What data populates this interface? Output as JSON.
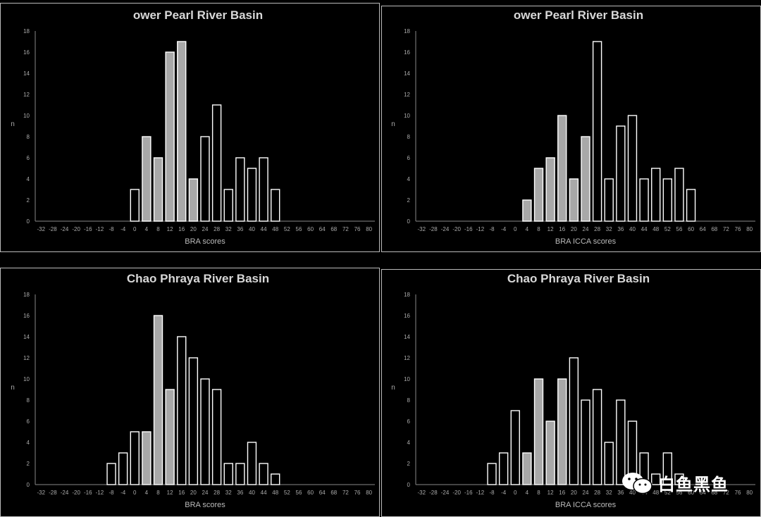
{
  "colors": {
    "background": "#000000",
    "bar_outline": "#ffffff",
    "bar_filled": "#a8a8a8",
    "text": "#d8d8d8"
  },
  "watermark": {
    "text": "白鱼黑鱼",
    "icon": "wechat-icon"
  },
  "chart_data": [
    {
      "type": "bar",
      "title": "ower Pearl River Basin",
      "xlabel": "BRA scores",
      "ylabel": "n",
      "ylim": [
        0,
        18
      ],
      "yticks": [
        "0",
        "2",
        "4",
        "6",
        "8",
        "10",
        "12",
        "14",
        "16",
        "18"
      ],
      "categories": [
        "-32",
        "-28",
        "-24",
        "-20",
        "-16",
        "-12",
        "-8",
        "-4",
        "0",
        "4",
        "8",
        "12",
        "16",
        "20",
        "24",
        "28",
        "32",
        "36",
        "40",
        "44",
        "48",
        "52",
        "56",
        "60",
        "64",
        "68",
        "72",
        "76",
        "80"
      ],
      "values": [
        0,
        0,
        0,
        0,
        0,
        0,
        0,
        0,
        3,
        8,
        6,
        16,
        17,
        4,
        8,
        11,
        3,
        6,
        5,
        6,
        3,
        0,
        0,
        0,
        0,
        0,
        0,
        0,
        0
      ],
      "filled": [
        false,
        false,
        false,
        false,
        false,
        false,
        false,
        false,
        false,
        true,
        true,
        true,
        true,
        true,
        false,
        false,
        false,
        false,
        false,
        false,
        false,
        false,
        false,
        false,
        false,
        false,
        false,
        false,
        false
      ]
    },
    {
      "type": "bar",
      "title": "ower Pearl River Basin",
      "xlabel": "BRA ICCA scores",
      "ylabel": "n",
      "ylim": [
        0,
        18
      ],
      "yticks": [
        "0",
        "2",
        "4",
        "6",
        "8",
        "10",
        "12",
        "14",
        "16",
        "18"
      ],
      "categories": [
        "-32",
        "-28",
        "-24",
        "-20",
        "-16",
        "-12",
        "-8",
        "-4",
        "0",
        "4",
        "8",
        "12",
        "16",
        "20",
        "24",
        "28",
        "32",
        "36",
        "40",
        "44",
        "48",
        "52",
        "56",
        "60",
        "64",
        "68",
        "72",
        "76",
        "80"
      ],
      "values": [
        0,
        0,
        0,
        0,
        0,
        0,
        0,
        0,
        0,
        2,
        5,
        6,
        10,
        4,
        8,
        17,
        4,
        9,
        10,
        4,
        5,
        4,
        5,
        3,
        0,
        0,
        0,
        0,
        0
      ],
      "filled": [
        false,
        false,
        false,
        false,
        false,
        false,
        false,
        false,
        false,
        true,
        true,
        true,
        true,
        true,
        true,
        false,
        false,
        false,
        false,
        false,
        false,
        false,
        false,
        false,
        false,
        false,
        false,
        false,
        false
      ]
    },
    {
      "type": "bar",
      "title": "Chao Phraya River Basin",
      "xlabel": "BRA scores",
      "ylabel": "n",
      "ylim": [
        0,
        18
      ],
      "yticks": [
        "0",
        "2",
        "4",
        "6",
        "8",
        "10",
        "12",
        "14",
        "16",
        "18"
      ],
      "categories": [
        "-32",
        "-28",
        "-24",
        "-20",
        "-16",
        "-12",
        "-8",
        "-4",
        "0",
        "4",
        "8",
        "12",
        "16",
        "20",
        "24",
        "28",
        "32",
        "36",
        "40",
        "44",
        "48",
        "52",
        "56",
        "60",
        "64",
        "68",
        "72",
        "76",
        "80"
      ],
      "values": [
        0,
        0,
        0,
        0,
        0,
        0,
        2,
        3,
        5,
        5,
        16,
        9,
        14,
        12,
        10,
        9,
        2,
        2,
        4,
        2,
        1,
        0,
        0,
        0,
        0,
        0,
        0,
        0,
        0
      ],
      "filled": [
        false,
        false,
        false,
        false,
        false,
        false,
        false,
        false,
        false,
        true,
        true,
        true,
        false,
        false,
        false,
        false,
        false,
        false,
        false,
        false,
        false,
        false,
        false,
        false,
        false,
        false,
        false,
        false,
        false
      ]
    },
    {
      "type": "bar",
      "title": "Chao Phraya River Basin",
      "xlabel": "BRA ICCA scores",
      "ylabel": "n",
      "ylim": [
        0,
        18
      ],
      "yticks": [
        "0",
        "2",
        "4",
        "6",
        "8",
        "10",
        "12",
        "14",
        "16",
        "18"
      ],
      "categories": [
        "-32",
        "-28",
        "-24",
        "-20",
        "-16",
        "-12",
        "-8",
        "-4",
        "0",
        "4",
        "8",
        "12",
        "16",
        "20",
        "24",
        "28",
        "32",
        "36",
        "40",
        "44",
        "48",
        "52",
        "56",
        "60",
        "64",
        "68",
        "72",
        "76",
        "80"
      ],
      "values": [
        0,
        0,
        0,
        0,
        0,
        0,
        2,
        3,
        7,
        3,
        10,
        6,
        10,
        12,
        8,
        9,
        4,
        8,
        6,
        3,
        1,
        3,
        1,
        0,
        0,
        0,
        0,
        0,
        0
      ],
      "filled": [
        false,
        false,
        false,
        false,
        false,
        false,
        false,
        false,
        false,
        true,
        true,
        true,
        true,
        false,
        false,
        false,
        false,
        false,
        false,
        false,
        false,
        false,
        false,
        false,
        false,
        false,
        false,
        false,
        false
      ]
    }
  ]
}
